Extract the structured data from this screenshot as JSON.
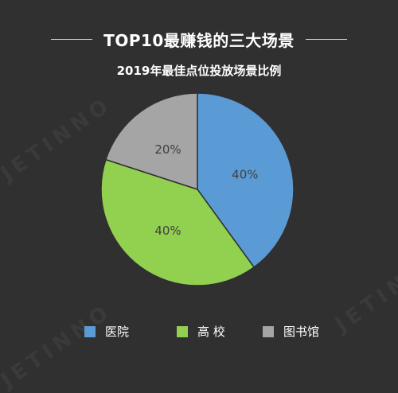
{
  "header": {
    "title": "TOP10最赚钱的三大场景"
  },
  "watermark": "JETINNO",
  "chart_data": {
    "type": "pie",
    "title": "2019年最佳点位投放场景比例",
    "slices": [
      {
        "label": "医院",
        "value": 40,
        "display": "40%",
        "color": "#5b9bd5"
      },
      {
        "label": "高 校",
        "value": 40,
        "display": "40%",
        "color": "#92d050"
      },
      {
        "label": "图书馆",
        "value": 20,
        "display": "20%",
        "color": "#a5a5a5"
      }
    ],
    "start_angle_deg": 0,
    "direction": "clockwise",
    "legend_position": "bottom"
  }
}
